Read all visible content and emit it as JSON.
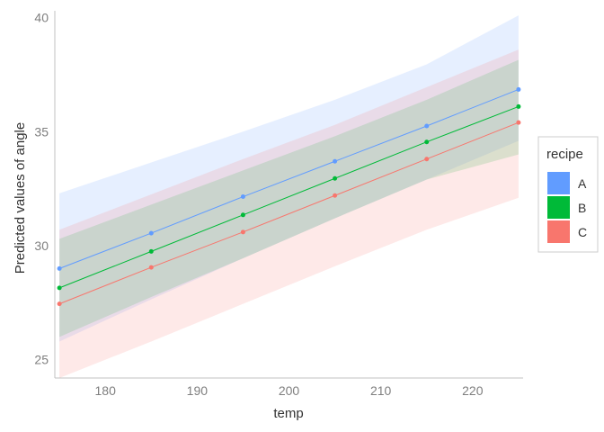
{
  "chart_data": {
    "type": "line",
    "title": "",
    "xlabel": "temp",
    "ylabel": "Predicted values of angle",
    "xlim": [
      174.5,
      225.5
    ],
    "ylim": [
      24.2,
      40.3
    ],
    "xticks": [
      180,
      190,
      200,
      210,
      220
    ],
    "yticks": [
      25,
      30,
      35,
      40
    ],
    "x": [
      175,
      185,
      195,
      205,
      215,
      225
    ],
    "grid": false,
    "legend": {
      "title": "recipe",
      "position": "right"
    },
    "series": [
      {
        "name": "A",
        "color": "#619CFF",
        "values": [
          29.0,
          30.55,
          32.15,
          33.7,
          35.25,
          36.85
        ],
        "lower": [
          25.8,
          27.65,
          29.45,
          31.2,
          32.9,
          34.6
        ],
        "upper": [
          32.3,
          33.65,
          35.0,
          36.4,
          37.95,
          40.1
        ]
      },
      {
        "name": "B",
        "color": "#00BA38",
        "values": [
          28.15,
          29.75,
          31.35,
          32.95,
          34.55,
          36.1
        ],
        "lower": [
          26.0,
          27.75,
          29.45,
          31.2,
          32.9,
          34.0
        ],
        "upper": [
          30.3,
          31.8,
          33.3,
          34.8,
          36.4,
          38.15
        ]
      },
      {
        "name": "C",
        "color": "#F8766D",
        "values": [
          27.45,
          29.05,
          30.6,
          32.2,
          33.8,
          35.4
        ],
        "lower": [
          24.2,
          25.8,
          27.45,
          29.1,
          30.7,
          32.1
        ],
        "upper": [
          30.7,
          32.25,
          33.8,
          35.3,
          36.95,
          38.6
        ]
      }
    ]
  }
}
